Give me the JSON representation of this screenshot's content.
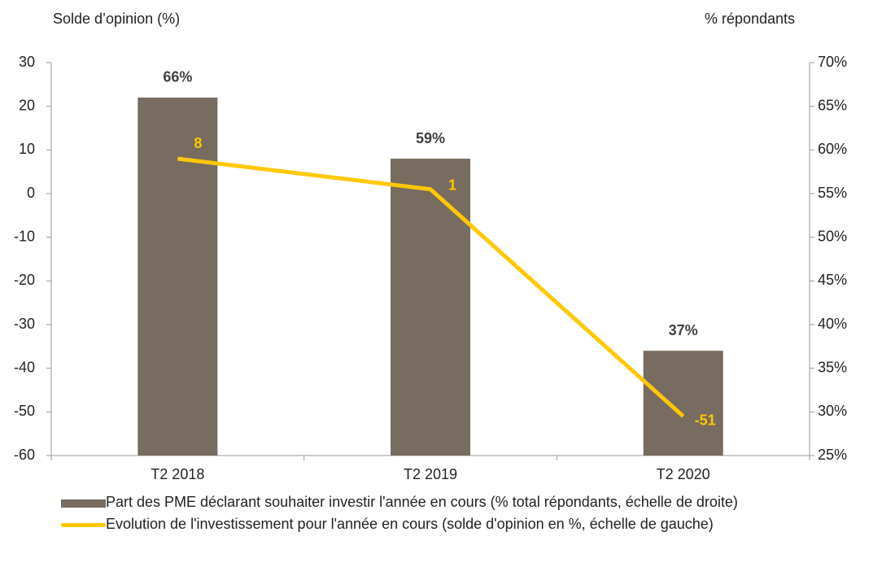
{
  "chart_data": {
    "type": "bar",
    "y_label": "Solde d’opinion (%)",
    "y2_label": "% répondants",
    "categories": [
      "T2 2018",
      "T2 2019",
      "T2 2020"
    ],
    "series": [
      {
        "name": "Part des PME déclarant souhaiter investir l'année en cours (% total répondants, échelle de droite)",
        "type": "bar",
        "axis": "y2",
        "color": "#786b5f",
        "values": [
          66,
          59,
          37
        ],
        "value_labels": [
          "66%",
          "59%",
          "37%"
        ]
      },
      {
        "name": "Evolution de l'investissement pour l'année en cours (solde d'opinion en %, échelle de gauche)",
        "type": "line",
        "axis": "y",
        "color": "#ffc800",
        "values": [
          8,
          1,
          -51
        ]
      }
    ],
    "ylim": [
      -60,
      30
    ],
    "yticks": [
      -60,
      -50,
      -40,
      -30,
      -20,
      -10,
      0,
      10,
      20,
      30
    ],
    "y2lim": [
      25,
      70
    ],
    "y2ticks": [
      {
        "value": 25,
        "label": "25%"
      },
      {
        "value": 30,
        "label": "30%"
      },
      {
        "value": 35,
        "label": "35%"
      },
      {
        "value": 40,
        "label": "40%"
      },
      {
        "value": 45,
        "label": "45%"
      },
      {
        "value": 50,
        "label": "50%"
      },
      {
        "value": 55,
        "label": "55%"
      },
      {
        "value": 60,
        "label": "60%"
      },
      {
        "value": 65,
        "label": "65%"
      },
      {
        "value": 70,
        "label": "70%"
      }
    ],
    "grid": false,
    "legend": "bottom"
  }
}
